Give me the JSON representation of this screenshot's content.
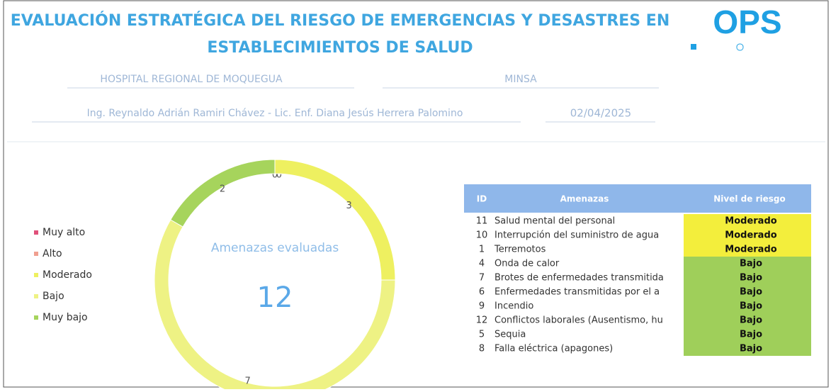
{
  "header": {
    "title_lines": [
      "EVALUACIÓN ESTRATÉGICA DEL RIESGO DE EMERGENCIAS Y DESASTRES EN",
      "ESTABLECIMIENTOS DE SALUD"
    ],
    "logo": "OPS",
    "establishment": "HOSPITAL REGIONAL DE MOQUEGUA",
    "institution": "MINSA",
    "evaluators": "Ing. Reynaldo Adrián Ramiri Chávez - Lic. Enf. Diana Jesús Herrera Palomino",
    "date": "02/04/2025"
  },
  "chart_data": {
    "type": "donut",
    "categories": [
      "Muy alto",
      "Alto",
      "Moderado",
      "Bajo",
      "Muy bajo"
    ],
    "values": [
      0,
      0,
      3,
      7,
      2
    ],
    "colors": [
      "#e0507a",
      "#f0a090",
      "#eef060",
      "#eef284",
      "#a6d45c"
    ],
    "center_label": "Amenazas evaluadas",
    "center_value": 12,
    "legend": "left"
  },
  "table": {
    "columns": [
      "ID",
      "Amenazas",
      "Nivel de riesgo"
    ],
    "rows": [
      {
        "id": 11,
        "threat": "Salud mental del personal",
        "level": "Moderado",
        "color": "#f3ee3c"
      },
      {
        "id": 10,
        "threat": "Interrupción del suministro de agua",
        "level": "Moderado",
        "color": "#f3ee3c"
      },
      {
        "id": 1,
        "threat": "Terremotos",
        "level": "Moderado",
        "color": "#f3ee3c"
      },
      {
        "id": 4,
        "threat": "Onda de calor",
        "level": "Bajo",
        "color": "#9fcf5a"
      },
      {
        "id": 7,
        "threat": "Brotes de enfermedades transmitida",
        "level": "Bajo",
        "color": "#9fcf5a"
      },
      {
        "id": 6,
        "threat": "Enfermedades transmitidas por el a",
        "level": "Bajo",
        "color": "#9fcf5a"
      },
      {
        "id": 9,
        "threat": "Incendio",
        "level": "Bajo",
        "color": "#9fcf5a"
      },
      {
        "id": 12,
        "threat": "Conflictos laborales (Ausentismo, hu",
        "level": "Bajo",
        "color": "#9fcf5a"
      },
      {
        "id": 5,
        "threat": "Sequia",
        "level": "Bajo",
        "color": "#9fcf5a"
      },
      {
        "id": 8,
        "threat": "Falla eléctrica (apagones)",
        "level": "Bajo",
        "color": "#9fcf5a"
      }
    ]
  }
}
